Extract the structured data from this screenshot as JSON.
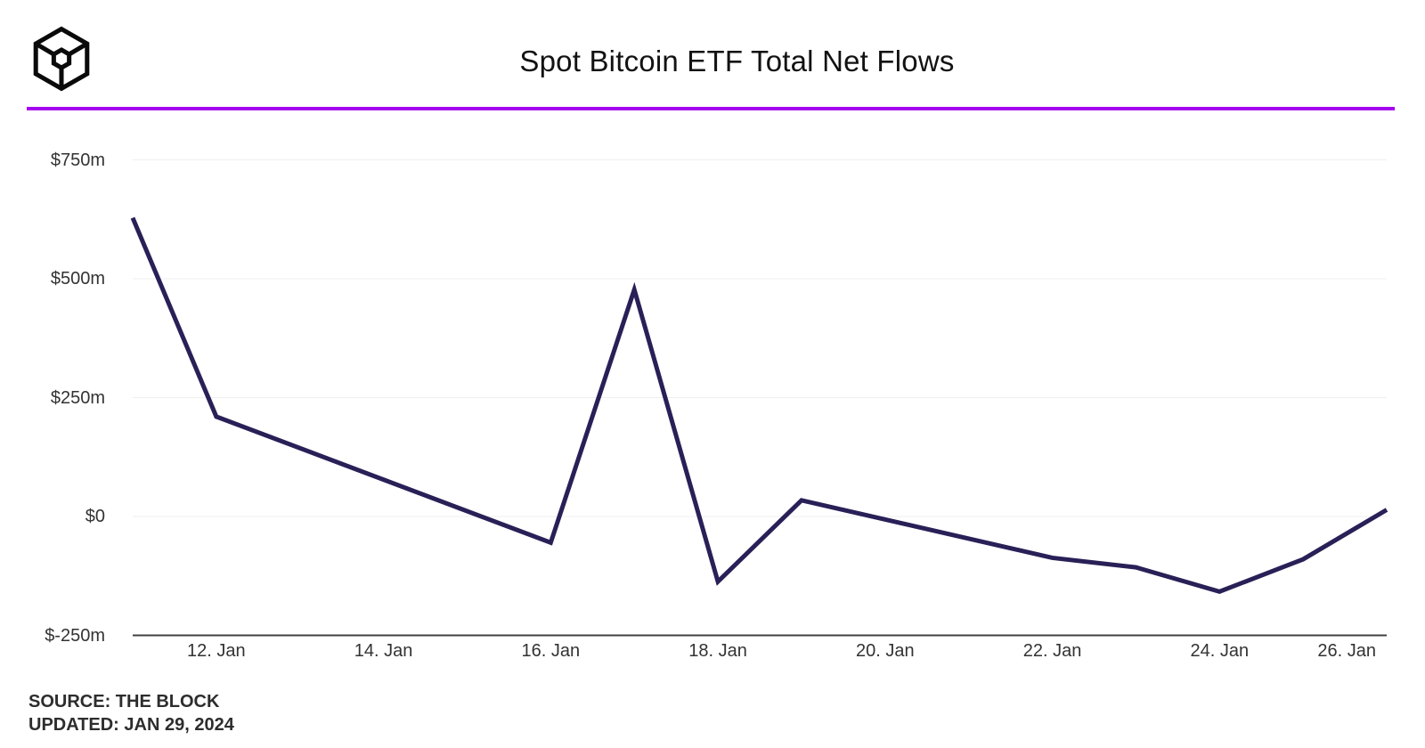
{
  "header": {
    "title": "Spot Bitcoin ETF Total Net Flows",
    "logo_name": "the-block-cube-logo",
    "divider_color": "#A503EF"
  },
  "footer": {
    "source": "SOURCE: THE BLOCK",
    "updated": "UPDATED: JAN 29, 2024"
  },
  "colors": {
    "series_line": "#292057",
    "gridline": "#efefef",
    "axis_baseline": "#404040",
    "tick_text": "#333333",
    "title_text": "#121212",
    "footer_text": "#2d2d2d",
    "background": "#ffffff"
  },
  "chart_data": {
    "type": "line",
    "title": "Spot Bitcoin ETF Total Net Flows",
    "unit": "USD millions (net flow per trading day)",
    "xlabel": "",
    "ylabel": "",
    "legend": "none",
    "grid": "horizontal",
    "x_range_days": [
      11,
      26
    ],
    "ylim": [
      -250,
      812
    ],
    "series": [
      {
        "name": "Spot Bitcoin ETF Total Net Flows",
        "points": [
          {
            "day": 11,
            "label": "11. Jan",
            "value": 628
          },
          {
            "day": 12,
            "label": "12. Jan",
            "value": 210
          },
          {
            "day": 16,
            "label": "16. Jan",
            "value": -55
          },
          {
            "day": 17,
            "label": "17. Jan",
            "value": 477
          },
          {
            "day": 18,
            "label": "18. Jan",
            "value": -137
          },
          {
            "day": 19,
            "label": "19. Jan",
            "value": 34
          },
          {
            "day": 22,
            "label": "22. Jan",
            "value": -87
          },
          {
            "day": 23,
            "label": "23. Jan",
            "value": -107
          },
          {
            "day": 24,
            "label": "24. Jan",
            "value": -158
          },
          {
            "day": 25,
            "label": "25. Jan",
            "value": -90
          },
          {
            "day": 26,
            "label": "26. Jan",
            "value": 14
          }
        ]
      }
    ],
    "x_ticks": [
      {
        "day": 12,
        "label": "12. Jan"
      },
      {
        "day": 14,
        "label": "14. Jan"
      },
      {
        "day": 16,
        "label": "16. Jan"
      },
      {
        "day": 18,
        "label": "18. Jan"
      },
      {
        "day": 20,
        "label": "20. Jan"
      },
      {
        "day": 22,
        "label": "22. Jan"
      },
      {
        "day": 24,
        "label": "24. Jan"
      },
      {
        "day": 26,
        "label": "26. Jan"
      }
    ],
    "y_ticks": [
      {
        "value": 750,
        "label": "$750m"
      },
      {
        "value": 500,
        "label": "$500m"
      },
      {
        "value": 250,
        "label": "$250m"
      },
      {
        "value": 0,
        "label": "$0"
      },
      {
        "value": -250,
        "label": "$-250m"
      }
    ]
  }
}
